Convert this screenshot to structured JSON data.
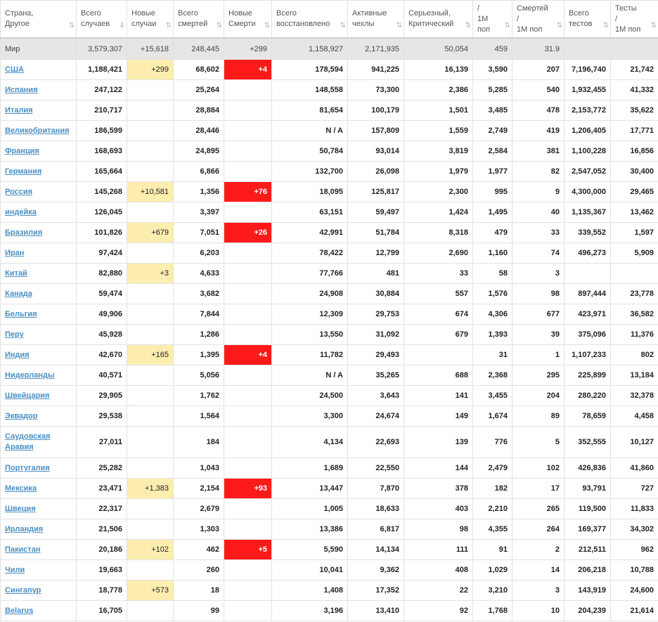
{
  "headers": [
    {
      "l1": "Страна,",
      "l2": "Другое"
    },
    {
      "l1": "Всего",
      "l2": "случаев"
    },
    {
      "l1": "Новые",
      "l2": "случаи"
    },
    {
      "l1": "Всего",
      "l2": "смертей"
    },
    {
      "l1": "Новые",
      "l2": "Смерти"
    },
    {
      "l1": "Всего",
      "l2": "восстановлено"
    },
    {
      "l1": "Активные",
      "l2": "чехлы"
    },
    {
      "l1": "Серьезный,",
      "l2": "Критический"
    },
    {
      "l1": "/",
      "l2": "1M",
      "l3": "поп"
    },
    {
      "l1": "Смертей",
      "l2": "/",
      "l3": "1M поп"
    },
    {
      "l1": "Всего",
      "l2": "тестов"
    },
    {
      "l1": "Тесты",
      "l2": "/",
      "l3": "1M поп"
    }
  ],
  "sort_icons": {
    "default": "⇅",
    "active": "⇩"
  },
  "world": [
    "Мир",
    "3,579,307",
    "+15,618",
    "248,445",
    "+299",
    "1,158,927",
    "2,171,935",
    "50,054",
    "459",
    "31.9",
    "",
    ""
  ],
  "rows": [
    [
      "США",
      "1,188,421",
      "+299",
      "68,602",
      "+4",
      "178,594",
      "941,225",
      "16,139",
      "3,590",
      "207",
      "7,196,740",
      "21,742"
    ],
    [
      "Испания",
      "247,122",
      "",
      "25,264",
      "",
      "148,558",
      "73,300",
      "2,386",
      "5,285",
      "540",
      "1,932,455",
      "41,332"
    ],
    [
      "Италия",
      "210,717",
      "",
      "28,884",
      "",
      "81,654",
      "100,179",
      "1,501",
      "3,485",
      "478",
      "2,153,772",
      "35,622"
    ],
    [
      "Великобритания",
      "186,599",
      "",
      "28,446",
      "",
      "N / A",
      "157,809",
      "1,559",
      "2,749",
      "419",
      "1,206,405",
      "17,771"
    ],
    [
      "Франция",
      "168,693",
      "",
      "24,895",
      "",
      "50,784",
      "93,014",
      "3,819",
      "2,584",
      "381",
      "1,100,228",
      "16,856"
    ],
    [
      "Германия",
      "165,664",
      "",
      "6,866",
      "",
      "132,700",
      "26,098",
      "1,979",
      "1,977",
      "82",
      "2,547,052",
      "30,400"
    ],
    [
      "Россия",
      "145,268",
      "+10,581",
      "1,356",
      "+76",
      "18,095",
      "125,817",
      "2,300",
      "995",
      "9",
      "4,300,000",
      "29,465"
    ],
    [
      "индейка",
      "126,045",
      "",
      "3,397",
      "",
      "63,151",
      "59,497",
      "1,424",
      "1,495",
      "40",
      "1,135,367",
      "13,462"
    ],
    [
      "Бразилия",
      "101,826",
      "+679",
      "7,051",
      "+26",
      "42,991",
      "51,784",
      "8,318",
      "479",
      "33",
      "339,552",
      "1,597"
    ],
    [
      "Иран",
      "97,424",
      "",
      "6,203",
      "",
      "78,422",
      "12,799",
      "2,690",
      "1,160",
      "74",
      "496,273",
      "5,909"
    ],
    [
      "Китай",
      "82,880",
      "+3",
      "4,633",
      "",
      "77,766",
      "481",
      "33",
      "58",
      "3",
      "",
      ""
    ],
    [
      "Канада",
      "59,474",
      "",
      "3,682",
      "",
      "24,908",
      "30,884",
      "557",
      "1,576",
      "98",
      "897,444",
      "23,778"
    ],
    [
      "Бельгия",
      "49,906",
      "",
      "7,844",
      "",
      "12,309",
      "29,753",
      "674",
      "4,306",
      "677",
      "423,971",
      "36,582"
    ],
    [
      "Перу",
      "45,928",
      "",
      "1,286",
      "",
      "13,550",
      "31,092",
      "679",
      "1,393",
      "39",
      "375,096",
      "11,376"
    ],
    [
      "Индия",
      "42,670",
      "+165",
      "1,395",
      "+4",
      "11,782",
      "29,493",
      "",
      "31",
      "1",
      "1,107,233",
      "802"
    ],
    [
      "Нидерланды",
      "40,571",
      "",
      "5,056",
      "",
      "N / A",
      "35,265",
      "688",
      "2,368",
      "295",
      "225,899",
      "13,184"
    ],
    [
      "Швейцария",
      "29,905",
      "",
      "1,762",
      "",
      "24,500",
      "3,643",
      "141",
      "3,455",
      "204",
      "280,220",
      "32,378"
    ],
    [
      "Эквадор",
      "29,538",
      "",
      "1,564",
      "",
      "3,300",
      "24,674",
      "149",
      "1,674",
      "89",
      "78,659",
      "4,458"
    ],
    [
      "Саудовская Аравия",
      "27,011",
      "",
      "184",
      "",
      "4,134",
      "22,693",
      "139",
      "776",
      "5",
      "352,555",
      "10,127"
    ],
    [
      "Португалия",
      "25,282",
      "",
      "1,043",
      "",
      "1,689",
      "22,550",
      "144",
      "2,479",
      "102",
      "426,836",
      "41,860"
    ],
    [
      "Мексика",
      "23,471",
      "+1,383",
      "2,154",
      "+93",
      "13,447",
      "7,870",
      "378",
      "182",
      "17",
      "93,791",
      "727"
    ],
    [
      "Швеция",
      "22,317",
      "",
      "2,679",
      "",
      "1,005",
      "18,633",
      "403",
      "2,210",
      "265",
      "119,500",
      "11,833"
    ],
    [
      "Ирландия",
      "21,506",
      "",
      "1,303",
      "",
      "13,386",
      "6,817",
      "98",
      "4,355",
      "264",
      "169,377",
      "34,302"
    ],
    [
      "Пакистан",
      "20,186",
      "+102",
      "462",
      "+5",
      "5,590",
      "14,134",
      "111",
      "91",
      "2",
      "212,511",
      "962"
    ],
    [
      "Чили",
      "19,663",
      "",
      "260",
      "",
      "10,041",
      "9,362",
      "408",
      "1,029",
      "14",
      "206,218",
      "10,788"
    ],
    [
      "Сингапур",
      "18,778",
      "+573",
      "18",
      "",
      "1,408",
      "17,352",
      "22",
      "3,210",
      "3",
      "143,919",
      "24,600"
    ],
    [
      "Belarus",
      "16,705",
      "",
      "99",
      "",
      "3,196",
      "13,410",
      "92",
      "1,768",
      "10",
      "204,239",
      "21,614"
    ]
  ],
  "colors": {
    "new_case_bg": "#fdeeb0",
    "new_death_bg": "#ff1a1a",
    "link": "#4a8fc3",
    "world_bg": "#e6e6e6"
  }
}
